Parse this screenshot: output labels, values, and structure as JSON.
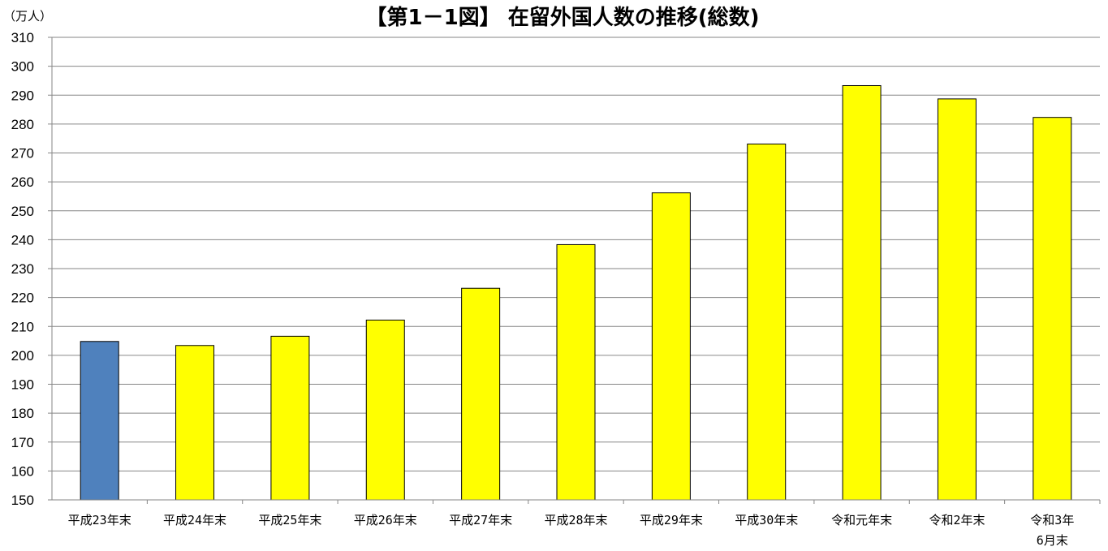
{
  "chart_data": {
    "type": "bar",
    "title": "【第1－1図】 在留外国人数の推移(総数)",
    "ylabel": "（万人）",
    "xlabel": "",
    "categories": [
      "平成23年末",
      "平成24年末",
      "平成25年末",
      "平成26年末",
      "平成27年末",
      "平成28年末",
      "平成29年末",
      "平成30年末",
      "令和元年末",
      "令和2年末",
      "令和3年\n6月末"
    ],
    "values": [
      204.8,
      203.4,
      206.6,
      212.2,
      223.2,
      238.3,
      256.2,
      273.1,
      293.3,
      288.7,
      282.3
    ],
    "ylim": [
      150,
      310
    ],
    "yticks": [
      150,
      160,
      170,
      180,
      190,
      200,
      210,
      220,
      230,
      240,
      250,
      260,
      270,
      280,
      290,
      300,
      310
    ],
    "grid": true,
    "colors": {
      "first_bar": "#4f81bd",
      "other_bars": "#ffff00",
      "bar_border": "#000000",
      "grid": "#868686"
    }
  }
}
